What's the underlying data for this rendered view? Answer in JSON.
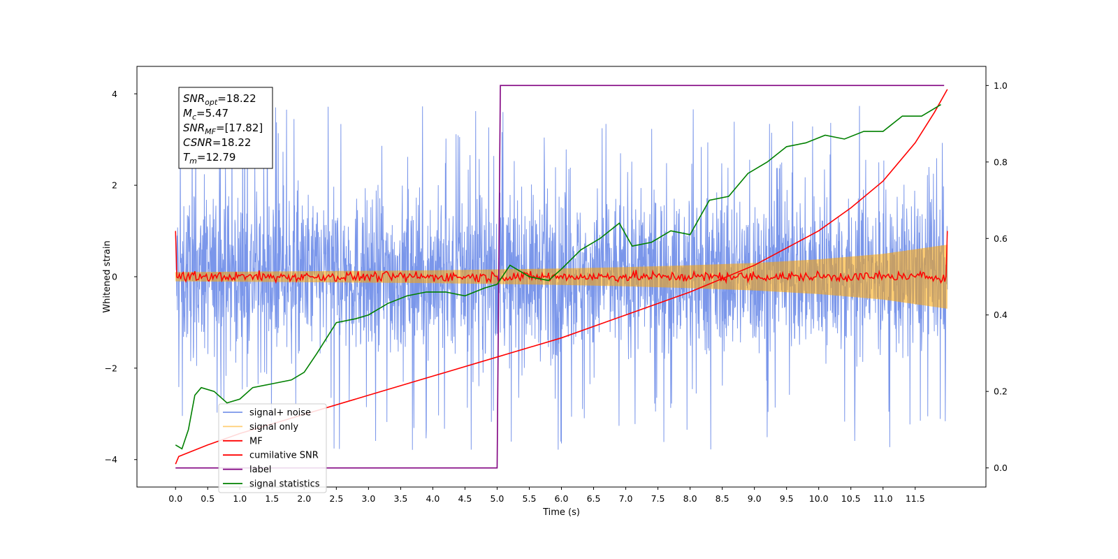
{
  "chart_data": {
    "type": "line",
    "xlabel": "Time (s)",
    "ylabel": "Whitened strain",
    "xlim": [
      -0.6,
      12.6
    ],
    "ylim": [
      -4.6,
      4.6
    ],
    "ylim_right": [
      -0.05,
      1.05
    ],
    "x_ticks": [
      "0.0",
      "0.5",
      "1.0",
      "1.5",
      "2.0",
      "2.5",
      "3.0",
      "3.5",
      "4.0",
      "4.5",
      "5.0",
      "5.5",
      "6.0",
      "6.5",
      "7.0",
      "7.5",
      "8.0",
      "8.5",
      "9.0",
      "9.5",
      "10.0",
      "10.5",
      "11.0",
      "11.5"
    ],
    "y_ticks_left": [
      "-4",
      "-2",
      "0",
      "2",
      "4"
    ],
    "y_ticks_right": [
      "0.0",
      "0.2",
      "0.4",
      "0.6",
      "0.8",
      "1.0"
    ],
    "legend_position": "lower-left",
    "colors": {
      "signal_noise": "#4169e1",
      "signal_only": "#ffa500",
      "mf": "#ff0000",
      "cumulative_snr": "#ff0000",
      "label": "#800080",
      "signal_statistics": "#008000"
    },
    "legend": [
      {
        "key": "signal_noise",
        "label": "signal+ noise"
      },
      {
        "key": "signal_only",
        "label": "signal only"
      },
      {
        "key": "mf",
        "label": "MF"
      },
      {
        "key": "cumulative_snr",
        "label": "cumilative SNR"
      },
      {
        "key": "label",
        "label": "label"
      },
      {
        "key": "signal_statistics",
        "label": "signal statistics"
      }
    ],
    "stats_box": [
      {
        "base": "SNR",
        "sub": "opt",
        "value": "=18.22"
      },
      {
        "base": "M",
        "sub": "c",
        "value": "=5.47"
      },
      {
        "base": "SNR",
        "sub": "MF",
        "value": "=[17.82]"
      },
      {
        "base": "CSNR",
        "sub": "",
        "value": "=18.22"
      },
      {
        "base": "T",
        "sub": "m",
        "value": "=12.79"
      }
    ],
    "series": [
      {
        "key": "signal_only",
        "axis": "left",
        "envelope_x": [
          0,
          1,
          2,
          3,
          4,
          5,
          6,
          7,
          8,
          9,
          10,
          11,
          12
        ],
        "envelope_amp": [
          0.1,
          0.11,
          0.12,
          0.13,
          0.14,
          0.16,
          0.18,
          0.21,
          0.25,
          0.3,
          0.38,
          0.5,
          0.7
        ]
      },
      {
        "key": "label",
        "axis": "right",
        "x": [
          0.0,
          5.0,
          5.05,
          11.95
        ],
        "y": [
          0.0,
          0.0,
          1.0,
          1.0
        ]
      },
      {
        "key": "cumulative_snr",
        "axis": "right",
        "x": [
          0.0,
          0.05,
          0.5,
          1.0,
          2.0,
          3.0,
          4.0,
          5.0,
          6.0,
          7.0,
          8.0,
          9.0,
          10.0,
          10.5,
          11.0,
          11.5,
          11.8,
          12.0
        ],
        "y": [
          0.01,
          0.03,
          0.06,
          0.09,
          0.14,
          0.19,
          0.24,
          0.29,
          0.34,
          0.4,
          0.46,
          0.53,
          0.62,
          0.68,
          0.75,
          0.85,
          0.93,
          0.99
        ]
      },
      {
        "key": "signal_statistics",
        "axis": "right",
        "x": [
          0.0,
          0.1,
          0.2,
          0.3,
          0.4,
          0.6,
          0.8,
          1.0,
          1.2,
          1.5,
          1.8,
          2.0,
          2.2,
          2.5,
          2.8,
          3.0,
          3.3,
          3.6,
          3.9,
          4.2,
          4.5,
          4.8,
          5.0,
          5.2,
          5.5,
          5.8,
          6.0,
          6.3,
          6.6,
          6.9,
          7.1,
          7.4,
          7.7,
          8.0,
          8.3,
          8.6,
          8.9,
          9.2,
          9.5,
          9.8,
          10.1,
          10.4,
          10.7,
          11.0,
          11.3,
          11.6,
          11.9
        ],
        "y": [
          0.06,
          0.05,
          0.1,
          0.19,
          0.21,
          0.2,
          0.17,
          0.18,
          0.21,
          0.22,
          0.23,
          0.25,
          0.3,
          0.38,
          0.39,
          0.4,
          0.43,
          0.45,
          0.46,
          0.46,
          0.45,
          0.47,
          0.48,
          0.53,
          0.5,
          0.49,
          0.52,
          0.57,
          0.6,
          0.64,
          0.58,
          0.59,
          0.62,
          0.61,
          0.7,
          0.71,
          0.77,
          0.8,
          0.84,
          0.85,
          0.87,
          0.86,
          0.88,
          0.88,
          0.92,
          0.92,
          0.95
        ]
      },
      {
        "key": "signal_noise",
        "axis": "left",
        "x_range": [
          0.0,
          12.0
        ],
        "typical_range": [
          -2.0,
          2.4
        ],
        "extreme_range": [
          -4.1,
          4.2
        ]
      },
      {
        "key": "mf",
        "axis": "left",
        "x_range": [
          0.0,
          12.0
        ],
        "edge_value": 1.0,
        "jitter": 0.12
      }
    ]
  }
}
